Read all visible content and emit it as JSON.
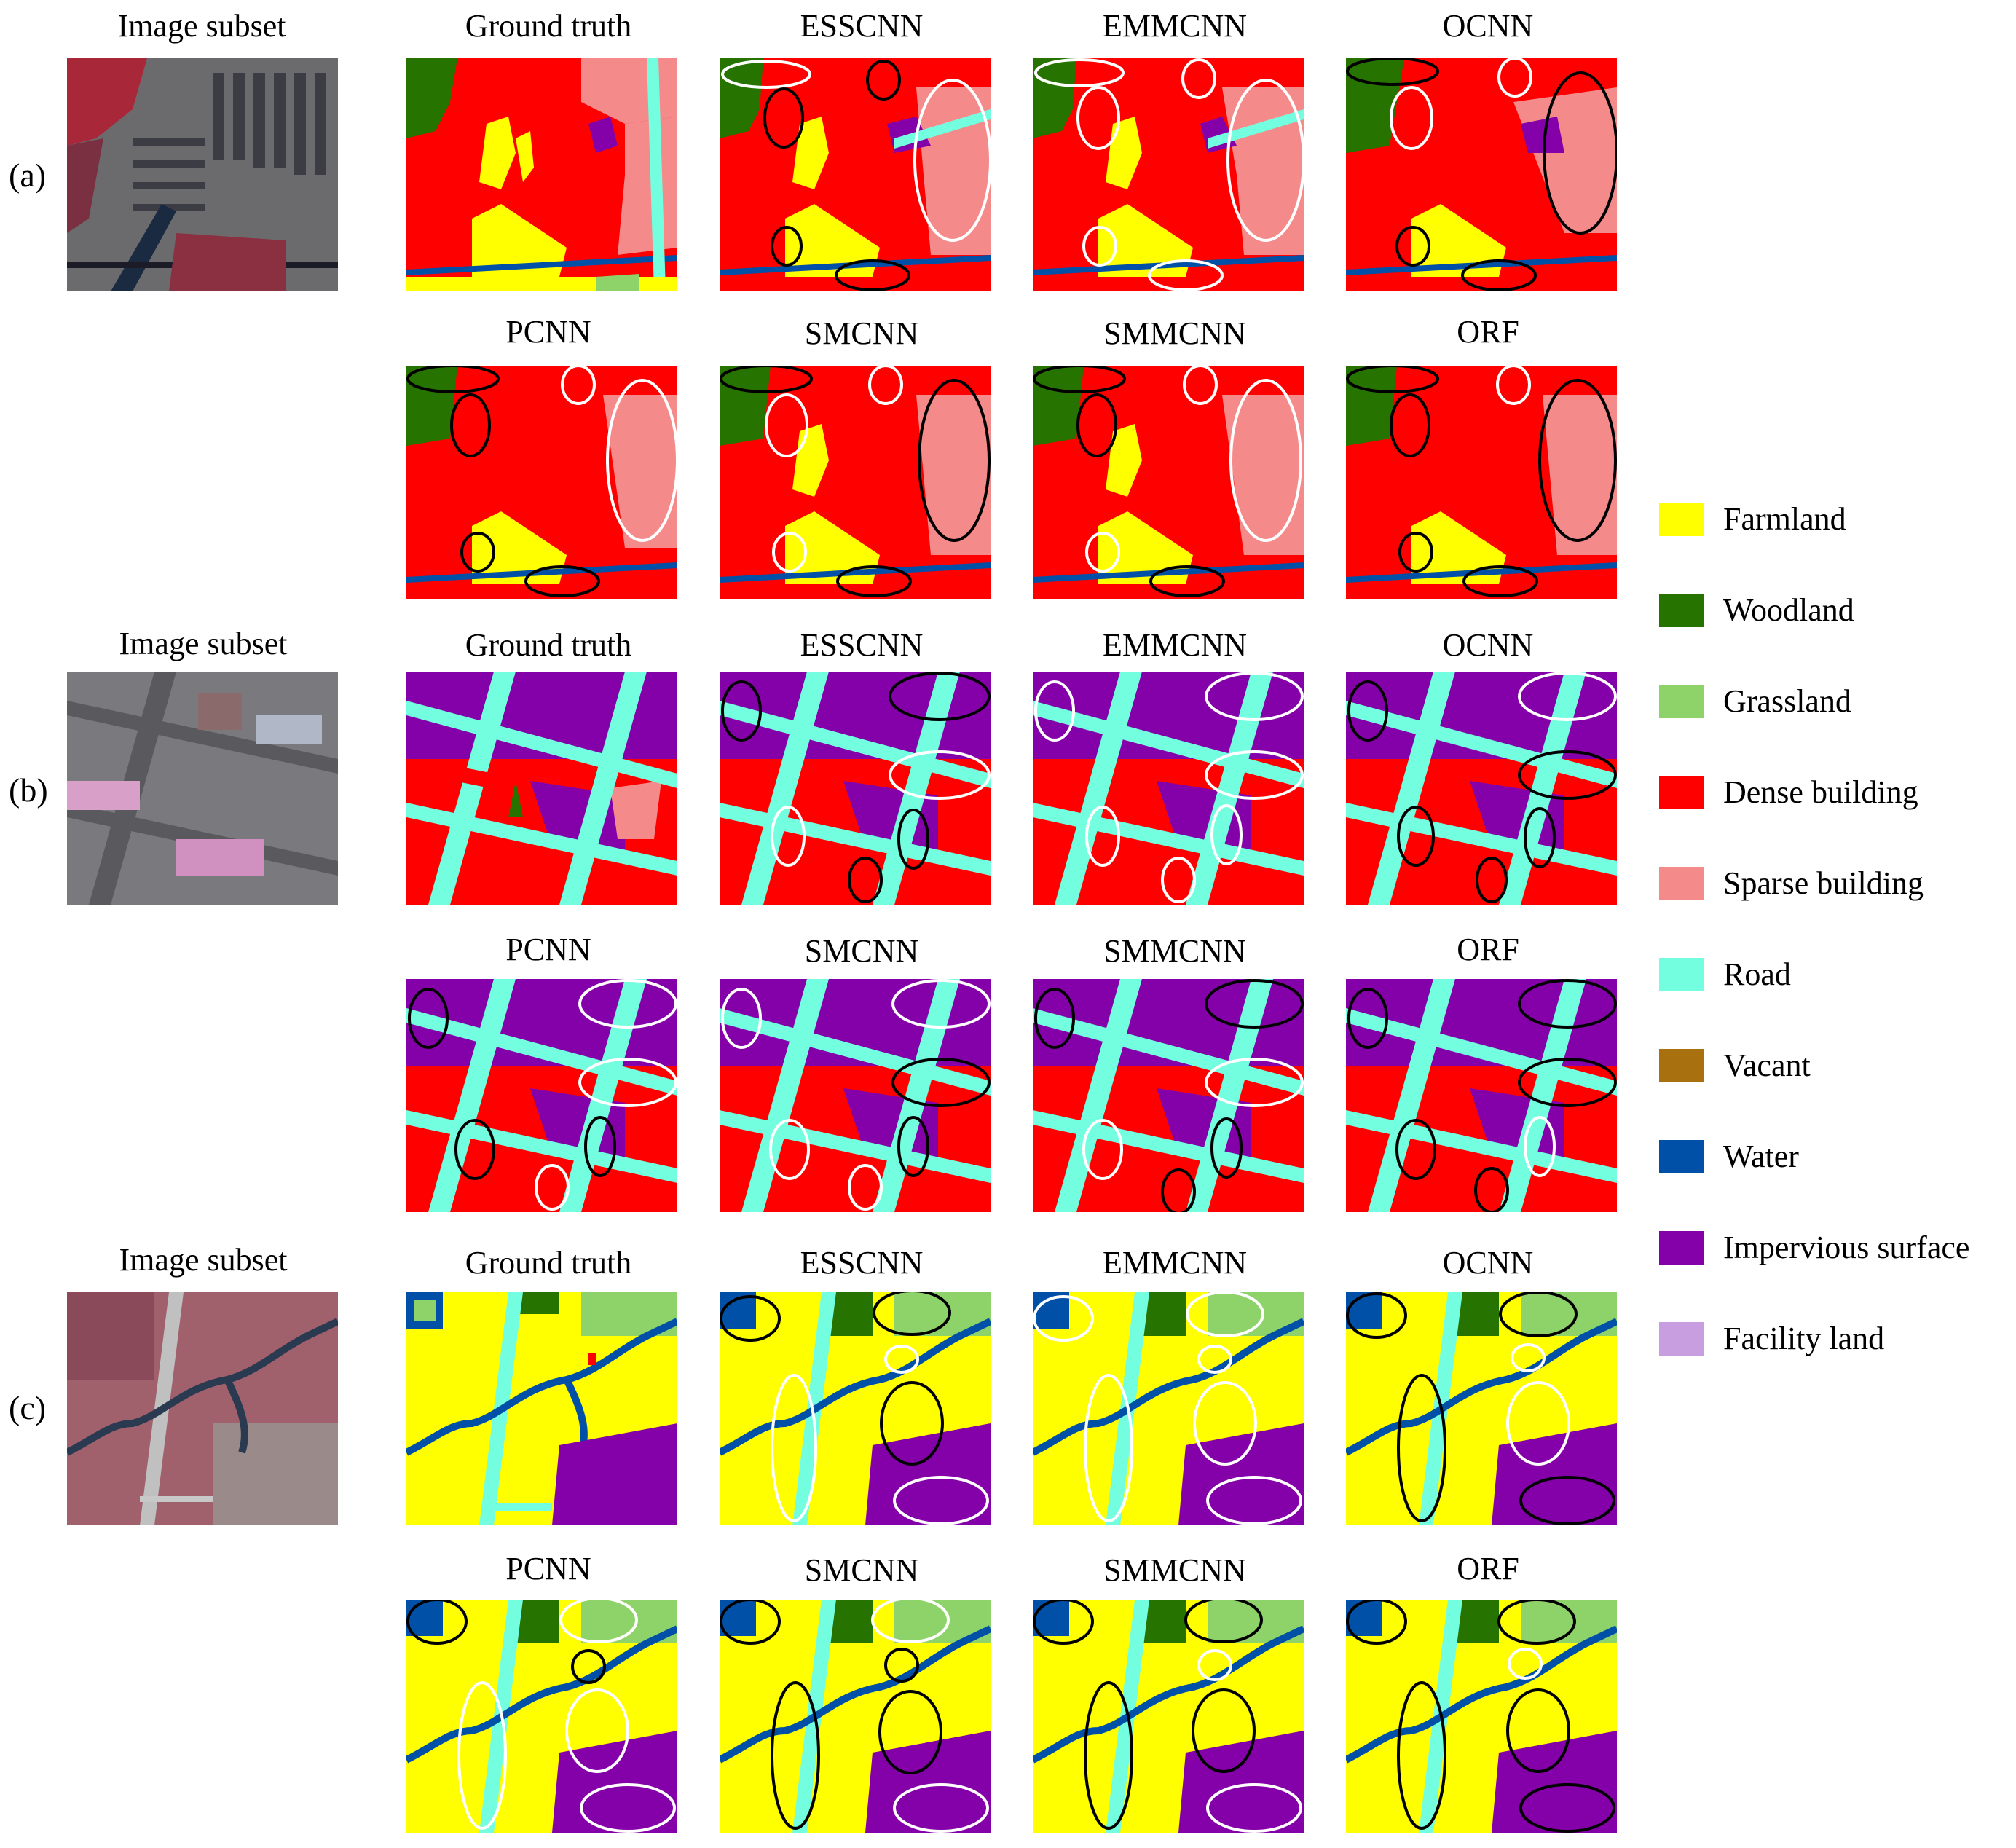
{
  "figure": {
    "rows": [
      {
        "id": "a",
        "row_label": "(a)",
        "image_label": "Image subset",
        "top_titles": [
          "Ground truth",
          "ESSCNN",
          "EMMCNN",
          "OCNN"
        ],
        "bottom_titles": [
          "PCNN",
          "SMCNN",
          "SMMCNN",
          "ORF"
        ]
      },
      {
        "id": "b",
        "row_label": "(b)",
        "image_label": "Image subset",
        "top_titles": [
          "Ground truth",
          "ESSCNN",
          "EMMCNN",
          "OCNN"
        ],
        "bottom_titles": [
          "PCNN",
          "SMCNN",
          "SMMCNN",
          "ORF"
        ]
      },
      {
        "id": "c",
        "row_label": "(c)",
        "image_label": "Image subset",
        "top_titles": [
          "Ground truth",
          "ESSCNN",
          "EMMCNN",
          "OCNN"
        ],
        "bottom_titles": [
          "PCNN",
          "SMCNN",
          "SMMCNN",
          "ORF"
        ]
      }
    ]
  },
  "legend": [
    {
      "label": "Farmland",
      "color": "#ffff00"
    },
    {
      "label": "Woodland",
      "color": "#267300"
    },
    {
      "label": "Grassland",
      "color": "#8ed36a"
    },
    {
      "label": "Dense building",
      "color": "#ff0000"
    },
    {
      "label": "Sparse building",
      "color": "#f48a8a"
    },
    {
      "label": "Road",
      "color": "#73ffdf"
    },
    {
      "label": "Vacant",
      "color": "#a8700f"
    },
    {
      "label": "Water",
      "color": "#0050a8"
    },
    {
      "label": "Impervious surface",
      "color": "#8400a8"
    },
    {
      "label": "Facility land",
      "color": "#c89ee0"
    }
  ]
}
